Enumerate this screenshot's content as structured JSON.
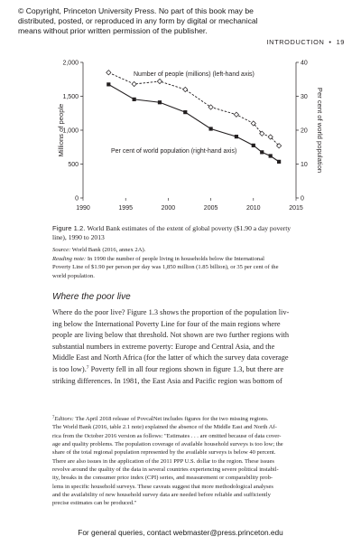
{
  "copyright": {
    "lines": [
      "© Copyright, Princeton University Press. No part of this book may be",
      "distributed, posted, or reproduced in any form by digital or mechanical",
      "means without prior written permission of the publisher."
    ]
  },
  "running_head": {
    "section": "INTRODUCTION",
    "separator": "•",
    "page": "19"
  },
  "chart_data": {
    "type": "line",
    "title": "",
    "xlabel": "",
    "ylabel": "Millions of people",
    "ylabel_right": "Per cent of world population",
    "xlim": [
      1990,
      2015
    ],
    "ylim": [
      0,
      2000
    ],
    "ylim_right": [
      0,
      40
    ],
    "x_ticks": [
      "1990",
      "1995",
      "2000",
      "2005",
      "2010",
      "2015"
    ],
    "y_ticks": [
      "0",
      "500",
      "1,000",
      "1,500",
      "2,000"
    ],
    "y_ticks_right": [
      "0",
      "10",
      "20",
      "30",
      "40"
    ],
    "series": [
      {
        "name": "Number of people (millions) (left-hand axis)",
        "axis": "left",
        "style": "dashed, open diamond markers",
        "x": [
          1993,
          1996,
          1999,
          2002,
          2005,
          2008,
          2010,
          2011,
          2012,
          2013
        ],
        "y": [
          1850,
          1680,
          1720,
          1600,
          1340,
          1230,
          1100,
          950,
          900,
          770
        ]
      },
      {
        "name": "Per cent of world population (right-hand axis)",
        "axis": "right",
        "style": "solid, filled square markers",
        "x": [
          1993,
          1996,
          1999,
          2002,
          2005,
          2008,
          2010,
          2011,
          2012,
          2013
        ],
        "y": [
          33.5,
          29.1,
          28.2,
          25.3,
          20.4,
          18.1,
          15.5,
          13.5,
          12.4,
          10.7
        ]
      }
    ],
    "grid": false
  },
  "caption": {
    "label": "Figure 1.2.",
    "text": "World Bank estimates of the extent of global poverty ($1.90 a day poverty line), 1990 to 2013",
    "line1_text": "World Bank estimates of the extent of global poverty ($1.90 a day poverty",
    "line2_text": "line), 1990 to 2013"
  },
  "notes": {
    "source_label": "Source:",
    "source_text": "World Bank (2016, annex 2A).",
    "reading_label": "Reading note:",
    "reading_lines": [
      "In 1990 the number of people living in households below the International",
      "Poverty Line of $1.90 per person per day was 1,850 million (1.85 billion), or 35 per cent of the",
      "world population."
    ]
  },
  "section_title": "Where the poor live",
  "body": {
    "lines": [
      "Where do the poor live? Figure 1.3 shows the proportion of the population liv-",
      "ing below the International Poverty Line for four of the main regions where",
      "people are living below that threshold. Not shown are two further regions with",
      "substantial numbers in extreme poverty: Europe and Central Asia, and the",
      "Middle East and North Africa (for the latter of which the survey data coverage",
      "is too low).",
      " Poverty fell in all four regions shown in figure 1.3, but there are",
      "striking differences. In 1981, the East Asia and Pacific region was bottom of"
    ],
    "footnote_ref": "7"
  },
  "footnote": {
    "marker": "7",
    "label": "Editors:",
    "lines": [
      " The April 2018 release of PovcalNet includes figures for the two missing regions.",
      "The World Bank (2016, table 2.1 note) explained the absence of the Middle East and North Af-",
      "rica from the October 2016 version as follows: \"Estimates . . . are omitted because of data cover-",
      "age and quality problems. The population coverage of available household surveys is too low; the",
      "share of the total regional population represented by the available surveys is below 40 percent.",
      "There are also issues in the application of the 2011 PPP U.S. dollar to the region. These issues",
      "revolve around the quality of the data in several countries experiencing severe political instabil-",
      "ity, breaks in the consumer price index (CPI) series, and measurement or comparability prob-",
      "lems in specific household surveys. These caveats suggest that more methodological analyses",
      "and the availability of new household survey data are needed before reliable and sufficiently",
      "precise estimates can be produced.\""
    ]
  },
  "footer": "For general queries, contact webmaster@press.princeton.edu"
}
